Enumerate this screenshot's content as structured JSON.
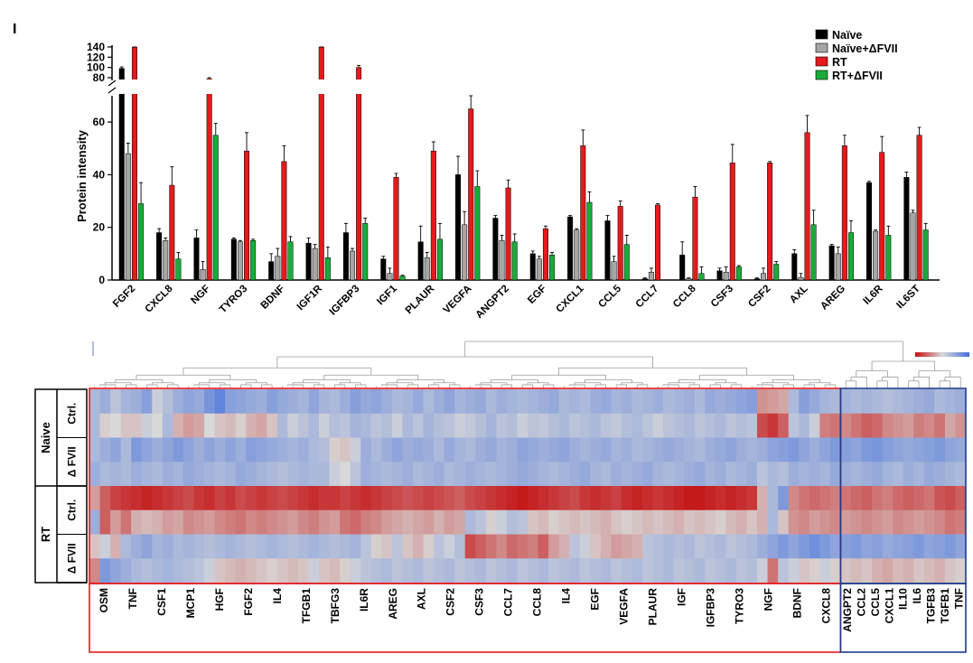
{
  "panel_letter": "I",
  "chart_data": [
    {
      "type": "bar",
      "title": "",
      "ylabel": "Protein intensity",
      "xlabel": "",
      "ylim_lower": [
        0,
        70
      ],
      "ylim_upper": [
        80,
        140
      ],
      "yticks_lower": [
        "0",
        "20",
        "40",
        "60"
      ],
      "yticks_upper": [
        "80",
        "100",
        "120",
        "140"
      ],
      "legend_position": "top-right",
      "categories": [
        "FGF2",
        "CXCL8",
        "NGF",
        "TYRO3",
        "BDNF",
        "IGF1R",
        "IGFBP3",
        "IGF1",
        "PLAUR",
        "VEGFA",
        "ANGPT2",
        "EGF",
        "CXCL1",
        "CCL5",
        "CCL7",
        "CCL8",
        "CSF3",
        "CSF2",
        "AXL",
        "AREG",
        "IL6R",
        "IL6ST"
      ],
      "series": [
        {
          "name": "Naïve",
          "color": "#000000",
          "values": [
            98,
            18,
            16,
            15.5,
            7,
            14,
            18,
            8,
            14.5,
            40,
            23.5,
            10,
            24,
            22.5,
            0.5,
            9.5,
            3.5,
            0.5,
            10,
            13,
            37,
            39
          ],
          "errors": [
            3,
            1.5,
            3,
            0.5,
            3,
            2,
            3.5,
            1,
            6,
            7,
            1,
            1,
            0.5,
            2,
            0.3,
            5,
            1,
            0.3,
            1.5,
            0.5,
            0.5,
            2
          ]
        },
        {
          "name": "Naïve+ΔFVII",
          "color": "#a6a6a6",
          "values": [
            48,
            15,
            4,
            14.5,
            9,
            12,
            11,
            2.5,
            8.5,
            21,
            15,
            8,
            19,
            7,
            3,
            0.5,
            3,
            2.5,
            1,
            10,
            18.5,
            25.5
          ],
          "errors": [
            4,
            1,
            3,
            0.5,
            3,
            1.5,
            1,
            2,
            2,
            5,
            2,
            1,
            0.5,
            2,
            1.5,
            0.3,
            2,
            2,
            1.5,
            2.5,
            0.5,
            1
          ]
        },
        {
          "name": "RT",
          "color": "#e41a1c",
          "values": [
            142,
            36,
            78,
            49,
            45,
            142,
            100,
            39,
            49,
            65,
            35,
            19.5,
            51,
            28,
            28.5,
            31.5,
            44.5,
            44.5,
            56,
            51,
            48.5,
            55
          ],
          "errors": [
            3,
            7,
            2,
            7,
            6,
            3,
            4,
            1.5,
            3.5,
            5,
            3,
            1,
            6,
            2,
            0.5,
            4,
            7,
            0.5,
            6.5,
            4,
            6,
            3
          ]
        },
        {
          "name": "RT+ΔFVII",
          "color": "#1aab3a",
          "values": [
            29,
            8,
            55,
            15,
            14.5,
            8.5,
            21.5,
            1.5,
            15.5,
            35.5,
            14.5,
            9.5,
            29.5,
            13.5,
            0,
            2.5,
            5,
            6,
            21,
            18,
            17,
            19
          ],
          "errors": [
            8,
            2.5,
            4.5,
            0.5,
            2,
            4,
            2,
            0.3,
            6,
            6,
            3,
            1,
            4,
            3.5,
            0,
            2.5,
            0.5,
            1,
            5.5,
            4.5,
            3.5,
            2.5
          ]
        }
      ]
    },
    {
      "type": "heatmap",
      "color_scale": [
        "#4470dd",
        "#d8d8d8",
        "#c40f10"
      ],
      "rows": [
        "Naive Ctrl. 1",
        "Naive Ctrl. 2",
        "Naive ΔFVII 1",
        "Naive ΔFVII 2",
        "RT Ctrl. 1",
        "RT Ctrl. 2",
        "RT ΔFVII 1",
        "RT ΔFVII 2"
      ],
      "groups": [
        {
          "label": "Naive",
          "subgroups": [
            "Ctrl.",
            "Δ FVII"
          ]
        },
        {
          "label": "RT",
          "subgroups": [
            "Ctrl.",
            "Δ FVII"
          ]
        }
      ],
      "clusters": [
        {
          "name": "cluster-red",
          "color": "#e41a1c",
          "labels": [
            "OSM",
            "TNF",
            "CSF1",
            "MCP1",
            "HGF",
            "FGF2",
            "IL4",
            "TFGB1",
            "TBFG3",
            "IL6R",
            "AREG",
            "AXL",
            "CSF2",
            "CSF3",
            "CCL7",
            "CCL8",
            "IL4",
            "EGF",
            "VEGFA",
            "PLAUR",
            "IGF",
            "IGFBP3",
            "TYRO3",
            "NGF",
            "BDNF",
            "CXCL8"
          ]
        },
        {
          "name": "cluster-blue",
          "color": "#1a3c8c",
          "labels": [
            "ANGPT2",
            "CCL2",
            "CCL5",
            "CXCL1",
            "IL10",
            "IL6",
            "TGFB3",
            "TGFB1",
            "TNF"
          ]
        }
      ],
      "values": [
        [
          -0.3,
          -0.4,
          -0.2,
          -0.35,
          -0.4,
          -0.55,
          -0.1,
          -0.25,
          -0.4,
          -0.5,
          -0.45,
          -0.65,
          -0.8,
          -0.55,
          -0.5,
          -0.45,
          -0.4,
          -0.55,
          -0.45,
          -0.4,
          -0.35,
          -0.5,
          -0.35,
          -0.3,
          -0.4,
          -0.55,
          -0.45,
          -0.5,
          -0.4,
          -0.3,
          -0.35,
          -0.45,
          -0.3,
          -0.4,
          -0.5,
          -0.35,
          -0.4,
          -0.45,
          -0.3,
          -0.4,
          -0.35,
          -0.3,
          -0.35,
          -0.4,
          -0.45,
          -0.3,
          -0.35,
          -0.3,
          -0.4,
          -0.45,
          -0.35,
          -0.4,
          -0.3,
          -0.35,
          -0.4,
          -0.3,
          -0.35,
          -0.4,
          -0.3,
          -0.45,
          -0.4,
          -0.45,
          -0.5,
          -0.55,
          0.35,
          0.3,
          0.25,
          -0.3,
          -0.55,
          -0.45,
          -0.35,
          -0.3,
          -0.35,
          -0.3,
          -0.35,
          -0.3,
          -0.25,
          -0.3,
          -0.35,
          -0.4,
          -0.45,
          -0.3,
          -0.35,
          -0.4
        ],
        [
          -0.3,
          0.05,
          0.0,
          0.1,
          0.1,
          -0.1,
          0.0,
          -0.3,
          0.2,
          0.3,
          0.25,
          0.0,
          0.1,
          0.15,
          0.05,
          0.2,
          0.25,
          0.1,
          -0.3,
          -0.1,
          -0.2,
          -0.3,
          -0.1,
          -0.25,
          -0.2,
          -0.35,
          -0.3,
          -0.2,
          -0.25,
          -0.1,
          -0.3,
          -0.2,
          -0.35,
          -0.25,
          -0.2,
          -0.1,
          -0.15,
          -0.25,
          -0.35,
          -0.2,
          -0.25,
          -0.1,
          -0.2,
          -0.15,
          -0.25,
          -0.3,
          -0.2,
          -0.25,
          -0.3,
          -0.2,
          -0.15,
          -0.25,
          -0.3,
          -0.2,
          -0.1,
          -0.2,
          -0.25,
          -0.3,
          -0.2,
          -0.25,
          -0.3,
          -0.2,
          -0.25,
          -0.2,
          0.7,
          0.8,
          0.6,
          -0.2,
          -0.3,
          -0.1,
          0.45,
          0.5,
          0.4,
          0.5,
          0.6,
          0.55,
          0.4,
          0.35,
          0.3,
          0.45,
          0.4,
          0.5,
          0.25,
          0.35
        ],
        [
          -0.3,
          -0.4,
          -0.5,
          -0.3,
          -0.6,
          -0.5,
          -0.4,
          -0.5,
          -0.6,
          -0.5,
          -0.4,
          -0.5,
          -0.4,
          -0.5,
          -0.4,
          -0.55,
          -0.5,
          -0.45,
          -0.4,
          -0.35,
          -0.4,
          -0.3,
          -0.25,
          0.05,
          0.1,
          -0.1,
          -0.4,
          -0.3,
          -0.4,
          -0.5,
          -0.4,
          -0.45,
          -0.4,
          -0.3,
          -0.45,
          -0.35,
          -0.3,
          -0.4,
          -0.45,
          -0.35,
          -0.4,
          -0.5,
          -0.45,
          -0.4,
          -0.45,
          -0.5,
          -0.4,
          -0.35,
          -0.4,
          -0.45,
          -0.35,
          -0.4,
          -0.3,
          -0.35,
          -0.4,
          -0.45,
          -0.4,
          -0.35,
          -0.3,
          -0.4,
          -0.45,
          -0.5,
          -0.4,
          -0.35,
          -0.4,
          -0.5,
          -0.55,
          -0.6,
          -0.5,
          -0.4,
          -0.5,
          -0.6,
          -0.55,
          -0.5,
          -0.6,
          -0.65,
          -0.55,
          -0.5,
          -0.45,
          -0.5,
          -0.55,
          -0.6,
          -0.5,
          -0.45
        ],
        [
          -0.4,
          -0.3,
          -0.35,
          -0.3,
          -0.4,
          -0.35,
          -0.3,
          -0.4,
          -0.35,
          -0.45,
          -0.4,
          -0.35,
          -0.3,
          -0.35,
          -0.45,
          -0.4,
          -0.35,
          -0.3,
          -0.25,
          -0.3,
          -0.35,
          -0.3,
          -0.3,
          -0.1,
          0.0,
          -0.2,
          -0.4,
          -0.35,
          -0.3,
          -0.35,
          -0.4,
          -0.3,
          -0.35,
          -0.4,
          -0.3,
          -0.35,
          -0.4,
          -0.35,
          -0.3,
          -0.35,
          -0.4,
          -0.45,
          -0.4,
          -0.35,
          -0.3,
          -0.35,
          -0.4,
          -0.45,
          -0.35,
          -0.3,
          -0.4,
          -0.35,
          -0.4,
          -0.45,
          -0.35,
          -0.3,
          -0.35,
          -0.4,
          -0.45,
          -0.35,
          -0.4,
          -0.3,
          -0.35,
          -0.4,
          -0.2,
          -0.3,
          -0.25,
          -0.4,
          -0.35,
          -0.4,
          -0.35,
          -0.45,
          -0.4,
          -0.35,
          -0.4,
          -0.45,
          -0.35,
          -0.3,
          -0.4,
          -0.35,
          -0.45,
          -0.4,
          -0.35,
          -0.3
        ],
        [
          0.3,
          0.6,
          0.75,
          0.8,
          0.85,
          0.9,
          0.85,
          0.8,
          0.75,
          0.7,
          0.8,
          0.85,
          0.75,
          0.8,
          0.7,
          0.75,
          0.8,
          0.75,
          0.7,
          0.75,
          0.8,
          0.85,
          0.8,
          0.8,
          0.75,
          0.8,
          0.85,
          0.8,
          0.75,
          0.7,
          0.65,
          0.7,
          0.75,
          0.7,
          0.65,
          0.6,
          0.7,
          0.75,
          0.8,
          0.85,
          0.9,
          0.95,
          0.9,
          0.85,
          0.8,
          0.75,
          0.7,
          0.8,
          0.85,
          0.8,
          0.75,
          0.85,
          0.9,
          0.85,
          0.8,
          0.85,
          0.9,
          0.95,
          0.95,
          0.9,
          0.85,
          0.9,
          0.85,
          0.8,
          0.2,
          -0.3,
          -0.6,
          0.4,
          0.5,
          0.55,
          0.5,
          0.45,
          0.5,
          0.55,
          0.6,
          0.5,
          0.45,
          0.55,
          0.6,
          0.55,
          0.5,
          0.65,
          0.7,
          0.6
        ],
        [
          -0.4,
          0.6,
          0.3,
          0.5,
          0.2,
          0.15,
          0.2,
          0.3,
          0.25,
          0.4,
          0.35,
          0.3,
          0.4,
          0.45,
          0.5,
          0.4,
          0.45,
          0.4,
          0.35,
          0.3,
          0.4,
          0.45,
          0.35,
          0.3,
          0.5,
          0.55,
          0.45,
          0.4,
          0.3,
          0.25,
          0.2,
          0.25,
          0.3,
          0.2,
          0.3,
          0.25,
          -0.3,
          -0.2,
          0.05,
          -0.1,
          -0.25,
          -0.2,
          0.1,
          0.15,
          0.05,
          0.1,
          0.15,
          0.1,
          0.15,
          0.2,
          0.1,
          0.05,
          0.1,
          0.15,
          0.1,
          0.15,
          0.2,
          0.1,
          0.15,
          0.1,
          0.05,
          0.15,
          0.2,
          0.1,
          0.2,
          -0.3,
          0.1,
          0.35,
          0.4,
          0.3,
          0.35,
          0.4,
          0.3,
          0.35,
          0.4,
          0.35,
          0.3,
          0.4,
          0.35,
          0.3,
          0.35,
          0.4,
          0.5,
          0.45
        ],
        [
          0.1,
          -0.1,
          0.2,
          -0.3,
          -0.4,
          -0.5,
          -0.35,
          -0.4,
          -0.3,
          -0.35,
          -0.3,
          -0.25,
          -0.3,
          -0.35,
          -0.3,
          -0.25,
          -0.3,
          -0.35,
          -0.3,
          -0.25,
          -0.3,
          -0.35,
          -0.3,
          -0.25,
          -0.3,
          -0.35,
          -0.2,
          0.05,
          0.1,
          -0.2,
          0.1,
          0.2,
          0.05,
          -0.2,
          -0.1,
          -0.25,
          0.7,
          0.6,
          0.5,
          0.4,
          0.55,
          0.5,
          0.45,
          0.6,
          0.3,
          0.2,
          -0.2,
          -0.1,
          0.1,
          0.2,
          0.3,
          0.25,
          0.2,
          -0.2,
          -0.25,
          -0.3,
          -0.25,
          -0.3,
          -0.2,
          -0.25,
          -0.3,
          -0.2,
          -0.25,
          -0.3,
          -0.4,
          -0.5,
          -0.6,
          -0.5,
          -0.6,
          -0.7,
          -0.6,
          -0.5,
          -0.55,
          -0.6,
          -0.5,
          -0.55,
          -0.45,
          -0.5,
          -0.55,
          -0.6,
          -0.5,
          -0.55,
          -0.6,
          -0.5
        ],
        [
          0.4,
          -0.6,
          -0.5,
          -0.4,
          -0.3,
          -0.25,
          -0.3,
          -0.35,
          -0.3,
          -0.25,
          -0.2,
          -0.1,
          0.1,
          0.15,
          0.2,
          0.15,
          0.1,
          0.05,
          0.1,
          0.15,
          0.1,
          -0.1,
          0.1,
          0.15,
          0.05,
          -0.1,
          -0.2,
          -0.25,
          -0.3,
          -0.2,
          -0.25,
          -0.3,
          -0.2,
          -0.25,
          -0.3,
          -0.2,
          -0.25,
          -0.3,
          -0.2,
          -0.25,
          -0.3,
          -0.2,
          -0.25,
          -0.3,
          -0.2,
          -0.25,
          -0.3,
          -0.2,
          -0.25,
          -0.3,
          -0.2,
          -0.25,
          -0.3,
          -0.2,
          -0.25,
          -0.3,
          -0.2,
          -0.25,
          -0.3,
          -0.2,
          -0.25,
          -0.3,
          -0.2,
          -0.25,
          -0.1,
          0.5,
          -0.2,
          -0.1,
          0.1,
          0.05,
          -0.1,
          0.05,
          0.1,
          0.15,
          0.1,
          0.2,
          0.25,
          0.15,
          0.2,
          0.1,
          0.15,
          0.2,
          0.1,
          0.05
        ]
      ]
    }
  ]
}
